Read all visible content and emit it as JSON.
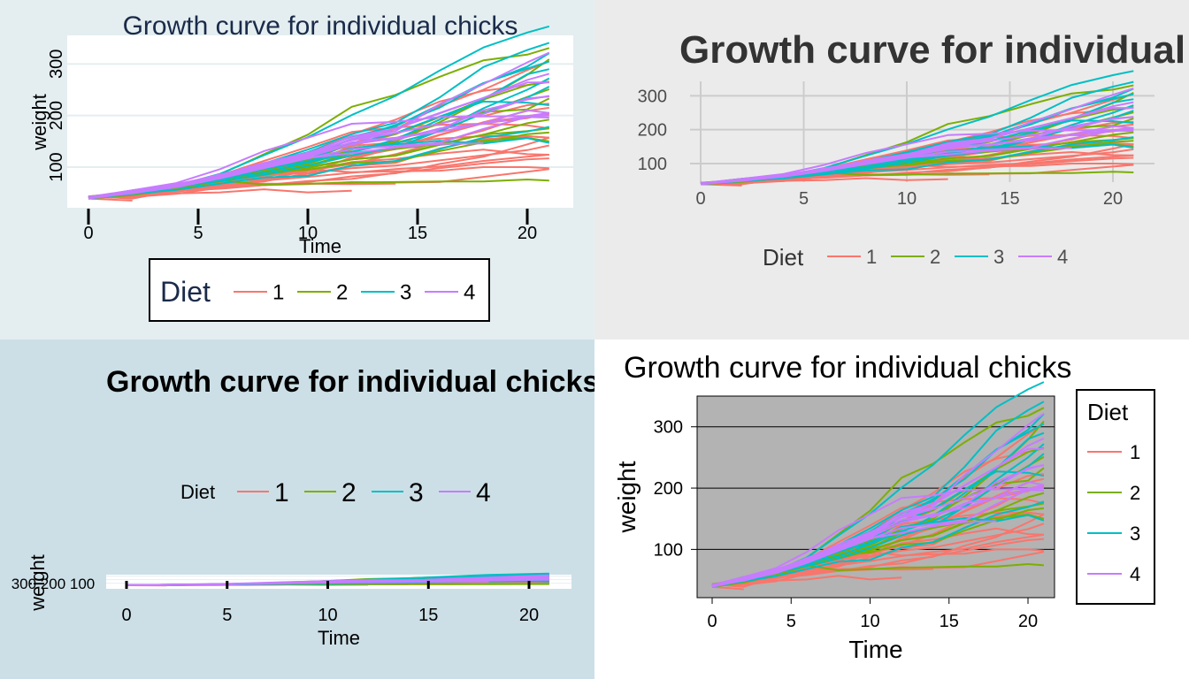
{
  "chart_data": [
    {
      "type": "line",
      "title": "Growth curve for individual chicks",
      "xlabel": "Time",
      "ylabel": "weight",
      "xlim": [
        -0.5,
        22
      ],
      "ylim": [
        20,
        380
      ],
      "x_ticks": [
        0,
        5,
        10,
        15,
        20
      ],
      "y_ticks": [
        100,
        200,
        300
      ],
      "grid": true,
      "legend_title": "Diet",
      "legend_items": [
        "1",
        "2",
        "3",
        "4"
      ],
      "legend_position": "bottom-boxed"
    },
    {
      "type": "line",
      "title": "Growth curve for individual chicks",
      "xlabel": "",
      "ylabel": "",
      "xlim": [
        -1,
        22
      ],
      "ylim": [
        0,
        390
      ],
      "x_ticks": [
        0,
        5,
        10,
        15,
        20
      ],
      "y_ticks": [
        100,
        200,
        300
      ],
      "grid": true,
      "legend_title": "Diet",
      "legend_items": [
        "1",
        "2",
        "3",
        "4"
      ],
      "legend_position": "bottom"
    },
    {
      "type": "line",
      "title": "Growth curve for individual chicks",
      "xlabel": "Time",
      "ylabel": "weight",
      "y_tick_labels_text": "300 200 100",
      "xlim": [
        -1,
        22
      ],
      "ylim": [
        30,
        380
      ],
      "x_ticks": [
        0,
        5,
        10,
        15,
        20
      ],
      "y_ticks": [
        100,
        200,
        300
      ],
      "grid": true,
      "legend_title": "Diet",
      "legend_items": [
        "1",
        "2",
        "3",
        "4"
      ],
      "legend_position": "top"
    },
    {
      "type": "line",
      "title": "Growth curve for individual chicks",
      "xlabel": "Time",
      "ylabel": "weight",
      "xlim": [
        -1,
        22
      ],
      "ylim": [
        20,
        390
      ],
      "x_ticks": [
        0,
        5,
        10,
        15,
        20
      ],
      "y_ticks": [
        100,
        200,
        300
      ],
      "grid": true,
      "legend_title": "Diet",
      "legend_items": [
        "1",
        "2",
        "3",
        "4"
      ],
      "legend_position": "right-boxed"
    }
  ],
  "diet_colors": [
    "#f8766d",
    "#7cae00",
    "#00bfc4",
    "#c77cff"
  ],
  "times": [
    0,
    2,
    4,
    6,
    8,
    10,
    12,
    14,
    16,
    18,
    20,
    21
  ],
  "chicks": [
    {
      "diet": 1,
      "w": [
        42,
        51,
        59,
        64,
        76,
        93,
        106,
        125,
        149,
        171,
        199,
        205
      ]
    },
    {
      "diet": 1,
      "w": [
        40,
        49,
        58,
        72,
        84,
        103,
        122,
        138,
        162,
        187,
        209,
        215
      ]
    },
    {
      "diet": 1,
      "w": [
        43,
        39,
        55,
        67,
        84,
        99,
        115,
        138,
        163,
        187,
        198,
        202
      ]
    },
    {
      "diet": 1,
      "w": [
        42,
        49,
        56,
        67,
        74,
        87,
        102,
        108,
        136,
        154,
        160,
        157
      ]
    },
    {
      "diet": 1,
      "w": [
        41,
        42,
        48,
        60,
        79,
        106,
        141,
        164,
        197,
        199,
        220,
        223
      ]
    },
    {
      "diet": 1,
      "w": [
        41,
        49,
        59,
        74,
        97,
        124,
        141,
        148,
        155,
        160,
        160,
        157
      ]
    },
    {
      "diet": 1,
      "w": [
        41,
        49,
        57,
        71,
        89,
        112,
        146,
        174,
        218,
        250,
        288,
        305
      ]
    },
    {
      "diet": 1,
      "w": [
        42,
        50,
        61,
        71,
        84,
        93,
        110,
        116,
        126,
        134,
        125,
        124
      ]
    },
    {
      "diet": 1,
      "w": [
        42,
        51,
        59,
        68,
        85,
        96,
        90,
        92,
        93,
        100,
        100,
        98
      ]
    },
    {
      "diet": 1,
      "w": [
        41,
        44,
        52,
        63,
        74,
        81,
        89,
        96,
        101,
        112,
        120,
        124
      ]
    },
    {
      "diet": 1,
      "w": [
        43,
        51,
        63,
        84,
        112,
        139,
        168,
        177,
        182,
        184,
        181,
        175
      ]
    },
    {
      "diet": 1,
      "w": [
        41,
        49,
        56,
        62,
        72,
        88,
        119,
        135,
        162,
        185,
        195,
        205
      ]
    },
    {
      "diet": 1,
      "w": [
        41,
        48,
        53,
        60,
        65,
        67,
        71,
        70,
        71,
        81,
        91,
        96
      ]
    },
    {
      "diet": 1,
      "w": [
        41,
        49,
        62,
        79,
        101,
        128,
        164,
        192,
        227,
        248,
        259,
        266
      ]
    },
    {
      "diet": 1,
      "w": [
        41,
        49,
        56,
        64,
        68,
        68,
        67,
        68
      ]
    },
    {
      "diet": 1,
      "w": [
        41,
        45,
        49,
        51,
        57,
        51,
        54
      ]
    },
    {
      "diet": 1,
      "w": [
        42,
        51,
        61,
        72,
        83,
        89,
        98,
        103,
        113,
        123,
        133,
        142
      ]
    },
    {
      "diet": 1,
      "w": [
        39,
        35
      ]
    },
    {
      "diet": 1,
      "w": [
        43,
        48,
        55,
        62,
        65,
        71,
        82,
        88,
        106,
        120,
        144,
        157
      ]
    },
    {
      "diet": 1,
      "w": [
        41,
        47,
        54,
        58,
        65,
        73,
        77,
        89,
        98,
        107,
        115,
        117
      ]
    },
    {
      "diet": 2,
      "w": [
        40,
        50,
        62,
        86,
        125,
        163,
        217,
        240,
        275,
        307,
        318,
        331
      ]
    },
    {
      "diet": 2,
      "w": [
        41,
        55,
        64,
        77,
        90,
        95,
        108,
        111,
        131,
        148,
        164,
        167
      ]
    },
    {
      "diet": 2,
      "w": [
        43,
        52,
        61,
        73,
        90,
        103,
        127,
        135,
        145,
        163,
        170,
        175
      ]
    },
    {
      "diet": 2,
      "w": [
        42,
        52,
        58,
        74,
        66,
        68,
        70,
        71,
        72,
        72,
        76,
        74
      ]
    },
    {
      "diet": 2,
      "w": [
        40,
        49,
        62,
        78,
        102,
        124,
        146,
        164,
        197,
        231,
        259,
        265
      ]
    },
    {
      "diet": 2,
      "w": [
        42,
        48,
        57,
        74,
        93,
        114,
        136,
        147,
        169,
        205,
        236,
        251
      ]
    },
    {
      "diet": 2,
      "w": [
        39,
        46,
        58,
        73,
        87,
        100,
        115,
        123,
        144,
        163,
        185,
        192
      ]
    },
    {
      "diet": 2,
      "w": [
        39,
        46,
        58,
        73,
        92,
        114,
        145,
        156,
        184,
        207,
        212,
        233
      ]
    },
    {
      "diet": 2,
      "w": [
        39,
        48,
        59,
        74,
        87,
        106,
        134,
        150,
        187,
        230,
        279,
        309
      ]
    },
    {
      "diet": 2,
      "w": [
        42,
        48,
        59,
        72,
        85,
        98,
        115,
        122,
        143,
        151,
        157,
        150
      ]
    },
    {
      "diet": 3,
      "w": [
        42,
        53,
        62,
        73,
        85,
        102,
        123,
        138,
        170,
        204,
        235,
        256
      ]
    },
    {
      "diet": 3,
      "w": [
        41,
        49,
        65,
        82,
        107,
        129,
        159,
        179,
        221,
        263,
        291,
        305
      ]
    },
    {
      "diet": 3,
      "w": [
        39,
        50,
        63,
        77,
        96,
        111,
        137,
        144,
        151,
        146,
        156,
        147
      ]
    },
    {
      "diet": 3,
      "w": [
        41,
        49,
        63,
        85,
        107,
        134,
        164,
        186,
        235,
        294,
        327,
        341
      ]
    },
    {
      "diet": 3,
      "w": [
        41,
        53,
        64,
        87,
        123,
        158,
        201,
        238,
        287,
        332,
        361,
        373
      ]
    },
    {
      "diet": 3,
      "w": [
        39,
        48,
        61,
        76,
        98,
        116,
        145,
        166,
        198,
        227,
        225,
        220
      ]
    },
    {
      "diet": 3,
      "w": [
        41,
        48,
        56,
        68,
        80,
        83,
        103,
        112,
        135,
        157,
        169,
        178
      ]
    },
    {
      "diet": 3,
      "w": [
        41,
        49,
        61,
        74,
        98,
        109,
        128,
        154,
        192,
        232,
        280,
        290
      ]
    },
    {
      "diet": 3,
      "w": [
        42,
        50,
        61,
        78,
        89,
        109,
        130,
        146,
        170,
        214,
        250,
        272
      ]
    },
    {
      "diet": 3,
      "w": [
        41,
        55,
        66,
        79,
        101,
        120,
        154,
        182,
        215,
        262,
        295,
        321
      ]
    },
    {
      "diet": 4,
      "w": [
        42,
        51,
        66,
        85,
        103,
        124,
        155,
        153,
        175,
        184,
        199,
        204
      ]
    },
    {
      "diet": 4,
      "w": [
        42,
        49,
        63,
        84,
        103,
        126,
        160,
        174,
        204,
        234,
        269,
        281
      ]
    },
    {
      "diet": 4,
      "w": [
        42,
        55,
        69,
        96,
        131,
        157,
        184,
        188,
        197,
        198,
        199,
        200
      ]
    },
    {
      "diet": 4,
      "w": [
        42,
        51,
        65,
        86,
        103,
        118,
        127,
        138,
        145,
        146
      ]
    },
    {
      "diet": 4,
      "w": [
        41,
        50,
        61,
        78,
        98,
        117,
        135,
        141,
        147,
        174,
        197,
        196
      ]
    },
    {
      "diet": 4,
      "w": [
        40,
        52,
        62,
        82,
        101,
        120,
        144,
        156,
        173,
        210,
        231,
        238
      ]
    },
    {
      "diet": 4,
      "w": [
        41,
        53,
        66,
        79,
        100,
        123,
        148,
        157,
        168,
        185,
        210,
        205
      ]
    },
    {
      "diet": 4,
      "w": [
        39,
        50,
        62,
        80,
        104,
        125,
        154,
        170,
        222,
        261,
        303,
        322
      ]
    },
    {
      "diet": 4,
      "w": [
        40,
        53,
        64,
        85,
        108,
        128,
        152,
        166,
        184,
        203,
        233,
        237
      ]
    },
    {
      "diet": 4,
      "w": [
        41,
        54,
        67,
        84,
        105,
        122,
        155,
        175,
        205,
        234,
        264,
        264
      ]
    }
  ]
}
